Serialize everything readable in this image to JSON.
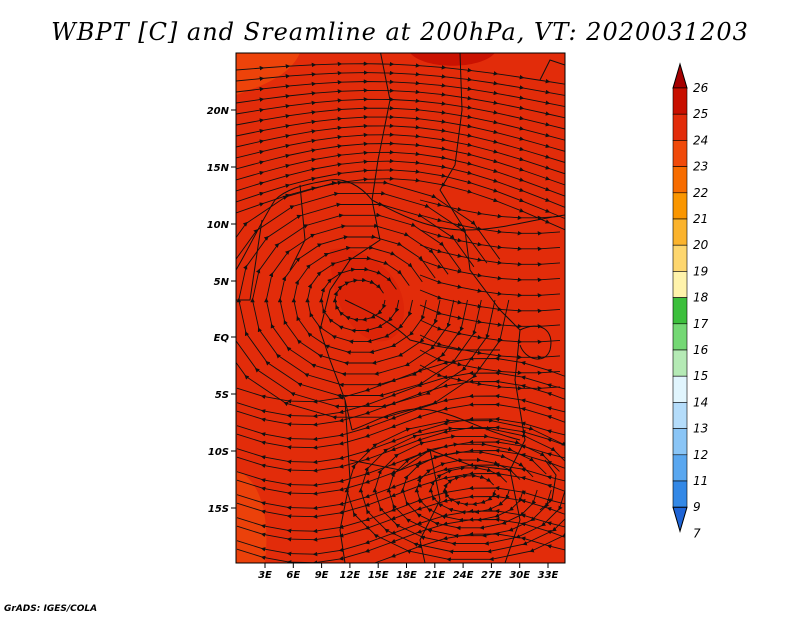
{
  "title": "WBPT [C] and Sreamline at 200hPa, VT: 2020031203",
  "credit": "GrADS: IGES/COLA",
  "map": {
    "lat_labels": [
      "20N",
      "15N",
      "10N",
      "5N",
      "EQ",
      "5S",
      "10S",
      "15S"
    ],
    "lon_labels": [
      "3E",
      "6E",
      "9E",
      "12E",
      "15E",
      "18E",
      "21E",
      "24E",
      "27E",
      "30E",
      "33E"
    ],
    "fill_color": "#e22c0a",
    "variable": "wet-bulb potential temperature",
    "overlay": "streamlines"
  },
  "colorbar": {
    "labels": [
      "26",
      "25",
      "24",
      "23",
      "22",
      "21",
      "20",
      "19",
      "18",
      "17",
      "16",
      "15",
      "14",
      "13",
      "12",
      "11",
      "9",
      "7"
    ],
    "colors": [
      "#a50000",
      "#c80f00",
      "#e22c0a",
      "#f04a0a",
      "#f76c00",
      "#fa9600",
      "#fbb32c",
      "#fdd66e",
      "#fff3ab",
      "#3cbf3c",
      "#74d874",
      "#b5eab5",
      "#e1f5fd",
      "#b4dcfa",
      "#8ac5f6",
      "#5aa7ef",
      "#3388e6",
      "#1e64d6"
    ]
  }
}
